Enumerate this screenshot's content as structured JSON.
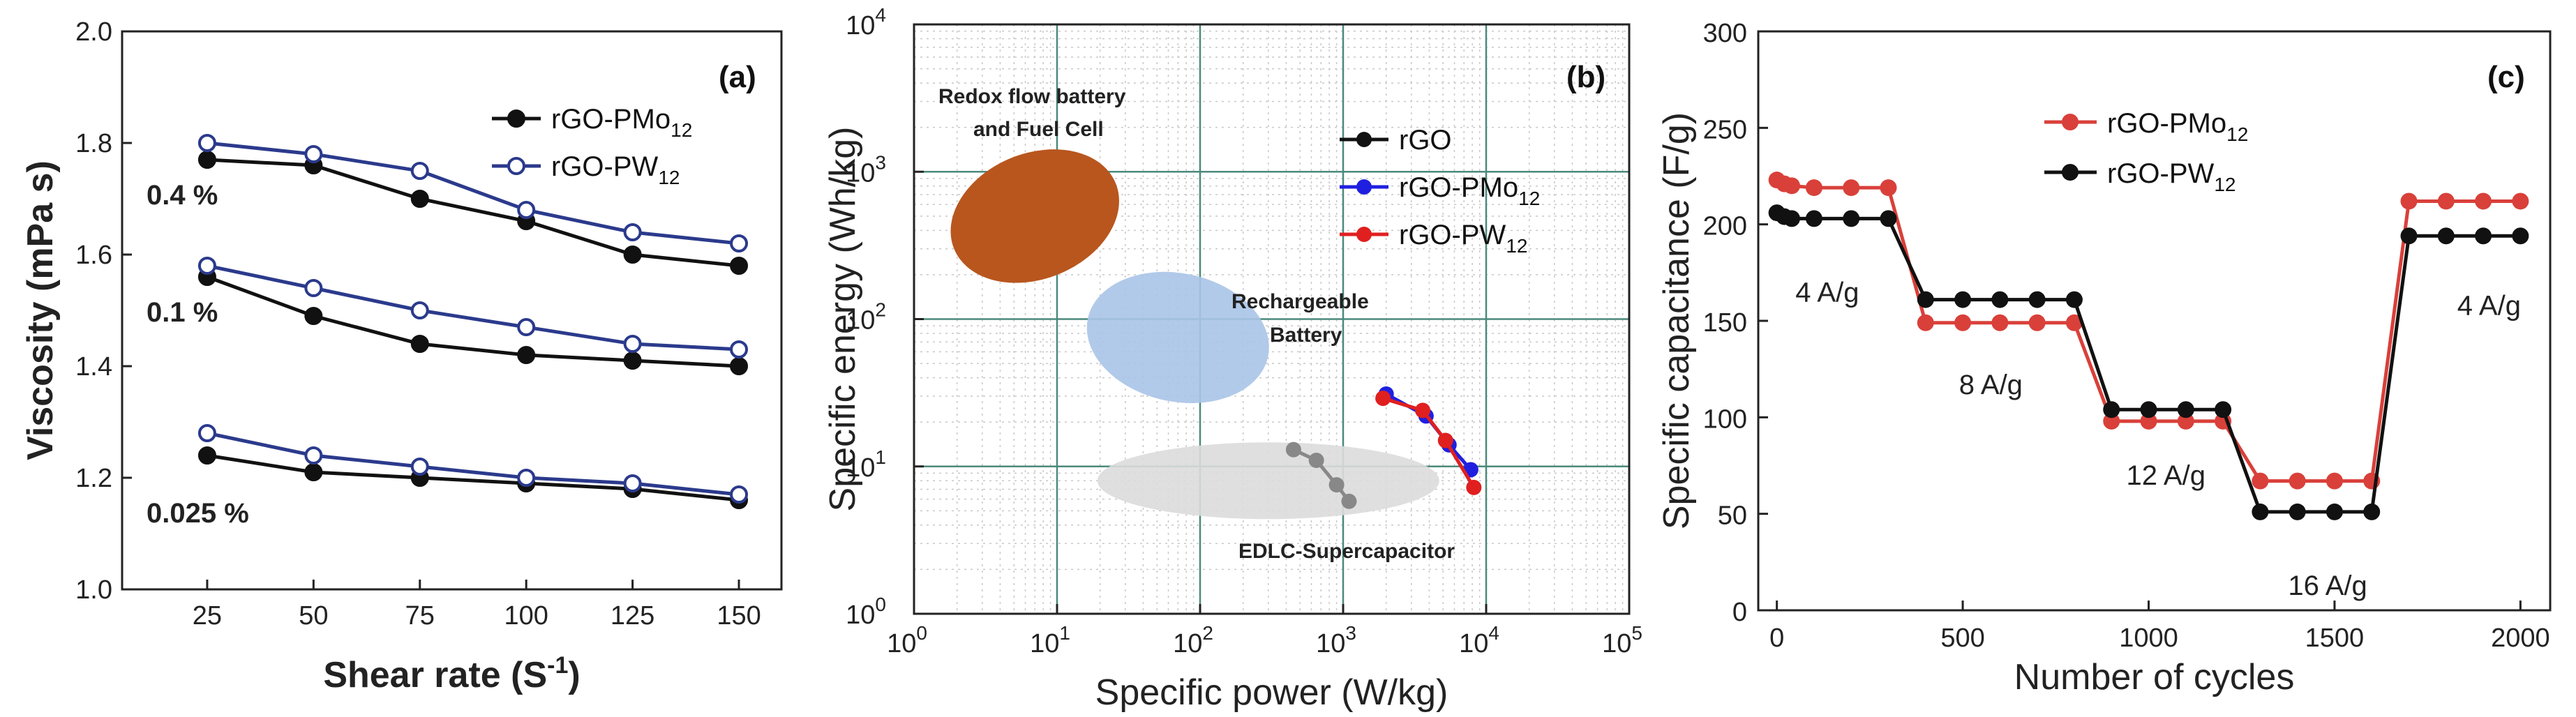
{
  "figure": {
    "panels": [
      "(a)",
      "(b)",
      "(c)"
    ]
  },
  "chart_data": [
    {
      "id": "a",
      "type": "line",
      "panel_label": "(a)",
      "title": "",
      "xlabel": "Shear rate (S",
      "xlabel_sup": "-1",
      "xlabel_end": ")",
      "ylabel": "Viscosity (mPa s)",
      "x": [
        25,
        50,
        75,
        100,
        125,
        150
      ],
      "xlim": [
        5,
        160
      ],
      "ylim": [
        1.0,
        2.0
      ],
      "xticks": [
        "25",
        "50",
        "75",
        "100",
        "125",
        "150"
      ],
      "yticks": [
        "1.0",
        "1.2",
        "1.4",
        "1.6",
        "1.8",
        "2.0"
      ],
      "legend": [
        {
          "name": "rGO-PMo",
          "sub": "12",
          "marker": "filled",
          "color": "#111111"
        },
        {
          "name": "rGO-PW",
          "sub": "12",
          "marker": "open",
          "color": "#2b3a8c"
        }
      ],
      "concentration_labels": [
        "0.4 %",
        "0.1 %",
        "0.025 %"
      ],
      "series": [
        {
          "name": "rGO-PMo12 0.4 %",
          "style": "filled",
          "color": "#111111",
          "values": [
            1.77,
            1.76,
            1.7,
            1.66,
            1.6,
            1.58
          ]
        },
        {
          "name": "rGO-PW12 0.4 %",
          "style": "open",
          "color": "#2b3a8c",
          "values": [
            1.8,
            1.78,
            1.75,
            1.68,
            1.64,
            1.62
          ]
        },
        {
          "name": "rGO-PMo12 0.1 %",
          "style": "filled",
          "color": "#111111",
          "values": [
            1.56,
            1.49,
            1.44,
            1.42,
            1.41,
            1.4
          ]
        },
        {
          "name": "rGO-PW12 0.1 %",
          "style": "open",
          "color": "#2b3a8c",
          "values": [
            1.58,
            1.54,
            1.5,
            1.47,
            1.44,
            1.43
          ]
        },
        {
          "name": "rGO-PMo12 0.025 %",
          "style": "filled",
          "color": "#111111",
          "values": [
            1.24,
            1.21,
            1.2,
            1.19,
            1.18,
            1.16
          ]
        },
        {
          "name": "rGO-PW12 0.025 %",
          "style": "open",
          "color": "#2b3a8c",
          "values": [
            1.28,
            1.24,
            1.22,
            1.2,
            1.19,
            1.17
          ]
        }
      ]
    },
    {
      "id": "b",
      "type": "scatter",
      "scale": "log-log",
      "panel_label": "(b)",
      "title": "",
      "xlabel": "Specific power (W/kg)",
      "ylabel": "Specific energy (Wh/kg)",
      "xlim": [
        1,
        100000
      ],
      "ylim": [
        1,
        10000
      ],
      "xtick_exponents": [
        "0",
        "1",
        "2",
        "3",
        "4",
        "5"
      ],
      "ytick_exponents": [
        "0",
        "1",
        "2",
        "3",
        "4"
      ],
      "tick_base": "10",
      "regions": [
        {
          "name": "redox",
          "label_lines": [
            "Redox flow battery",
            "and Fuel Cell"
          ],
          "color": "#b8561e",
          "center": [
            7,
            500
          ]
        },
        {
          "name": "rechargeable",
          "label_lines": [
            "Rechargeable",
            "Battery"
          ],
          "color": "#aac4e8",
          "center": [
            70,
            75
          ]
        },
        {
          "name": "edlc",
          "label_lines": [
            "EDLC-Supercapacitor"
          ],
          "color": "#dcdcdc",
          "center": [
            300,
            8
          ]
        }
      ],
      "legend": [
        {
          "name": "rGO",
          "sub": "",
          "color": "#111111"
        },
        {
          "name": "rGO-PMo",
          "sub": "12",
          "color": "#1f1fe0"
        },
        {
          "name": "rGO-PW",
          "sub": "12",
          "color": "#e01f1f"
        }
      ],
      "series": [
        {
          "name": "rGO",
          "color": "#888888",
          "x": [
            450,
            650,
            900,
            1100
          ],
          "y": [
            13,
            11,
            7.5,
            5.8
          ]
        },
        {
          "name": "rGO-PMo12",
          "color": "#1f1fe0",
          "x": [
            2000,
            3800,
            5500,
            7800
          ],
          "y": [
            31,
            22,
            14,
            9.5
          ]
        },
        {
          "name": "rGO-PW12",
          "color": "#e01f1f",
          "x": [
            1900,
            3600,
            5200,
            8200
          ],
          "y": [
            29,
            24,
            15,
            7.2
          ]
        }
      ]
    },
    {
      "id": "c",
      "type": "line",
      "panel_label": "(c)",
      "title": "",
      "xlabel": "Number of cycles",
      "ylabel": "Specific capacitance (F/g)",
      "xlim": [
        -50,
        2080
      ],
      "ylim": [
        0,
        300
      ],
      "xticks": [
        "0",
        "500",
        "1000",
        "1500",
        "2000"
      ],
      "yticks": [
        "0",
        "50",
        "100",
        "150",
        "200",
        "250",
        "300"
      ],
      "legend": [
        {
          "name": "rGO-PMo",
          "sub": "12",
          "color": "#d9403a"
        },
        {
          "name": "rGO-PW",
          "sub": "12",
          "color": "#111111"
        }
      ],
      "rate_labels": [
        {
          "text": "4 A/g",
          "x": 50,
          "y": 160
        },
        {
          "text": "8 A/g",
          "x": 490,
          "y": 112
        },
        {
          "text": "12 A/g",
          "x": 940,
          "y": 65
        },
        {
          "text": "16 A/g",
          "x": 1375,
          "y": 8
        },
        {
          "text": "4 A/g",
          "x": 1830,
          "y": 153
        }
      ],
      "series": [
        {
          "name": "rGO-PMo12",
          "color": "#d9403a",
          "x": [
            0,
            20,
            40,
            100,
            200,
            300,
            400,
            500,
            600,
            700,
            800,
            900,
            1000,
            1100,
            1200,
            1300,
            1400,
            1500,
            1600,
            1700,
            1800,
            1900,
            2000
          ],
          "y": [
            223,
            221,
            220,
            219,
            219,
            219,
            149,
            149,
            149,
            149,
            149,
            98,
            98,
            98,
            98,
            67,
            67,
            67,
            67,
            212,
            212,
            212,
            212
          ]
        },
        {
          "name": "rGO-PW12",
          "color": "#111111",
          "x": [
            0,
            20,
            40,
            100,
            200,
            300,
            400,
            500,
            600,
            700,
            800,
            900,
            1000,
            1100,
            1200,
            1300,
            1400,
            1500,
            1600,
            1700,
            1800,
            1900,
            2000
          ],
          "y": [
            206,
            204,
            203,
            203,
            203,
            203,
            161,
            161,
            161,
            161,
            161,
            104,
            104,
            104,
            104,
            51,
            51,
            51,
            51,
            194,
            194,
            194,
            194
          ]
        }
      ]
    }
  ]
}
